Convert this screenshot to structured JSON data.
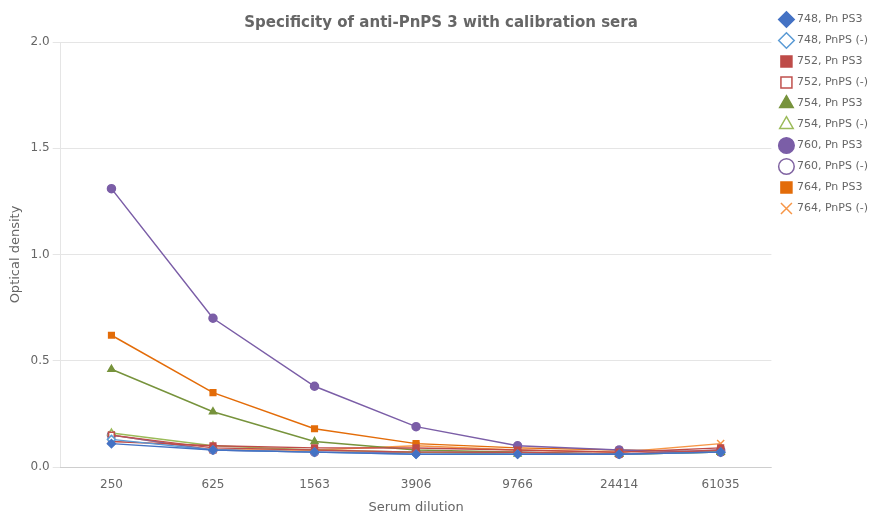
{
  "chart_data": {
    "type": "line",
    "title": "Specificity of anti-PnPS 3 with calibration sera",
    "xlabel": "Serum dilution",
    "ylabel": "Optical density",
    "categories": [
      "250",
      "625",
      "1563",
      "3906",
      "9766",
      "24414",
      "61035"
    ],
    "ylim": [
      0.0,
      2.0
    ],
    "yticks": [
      {
        "value": 0,
        "label": "0.0"
      },
      0.5,
      {
        "value": 1,
        "label": "1.0"
      },
      1.5,
      {
        "value": 2,
        "label": "2.0"
      }
    ],
    "grid": "y",
    "legend": "upper right",
    "series": [
      {
        "name": "748, Pn PS3",
        "color": "#4472C4",
        "marker": "diamond",
        "values": [
          0.11,
          0.08,
          0.07,
          0.06,
          0.06,
          0.06,
          0.07
        ]
      },
      {
        "name": "748, PnPS (-)",
        "color": "#5B9BD5",
        "marker": "open_diamond",
        "values": [
          0.13,
          0.08,
          0.07,
          0.06,
          0.06,
          0.06,
          0.07
        ]
      },
      {
        "name": "752, Pn PS3",
        "color": "#BE4B48",
        "marker": "square",
        "values": [
          0.12,
          0.1,
          0.09,
          0.09,
          0.08,
          0.07,
          0.09
        ]
      },
      {
        "name": "752, PnPS (-)",
        "color": "#C0504D",
        "marker": "open_square",
        "values": [
          0.15,
          0.09,
          0.08,
          0.07,
          0.07,
          0.06,
          0.08
        ]
      },
      {
        "name": "754, Pn PS3",
        "color": "#77933C",
        "marker": "triangle",
        "values": [
          0.46,
          0.26,
          0.12,
          0.08,
          0.07,
          0.06,
          0.07
        ]
      },
      {
        "name": "754, PnPS (-)",
        "color": "#9BBB59",
        "marker": "open_triangle",
        "values": [
          0.16,
          0.1,
          0.08,
          0.07,
          0.06,
          0.06,
          0.07
        ]
      },
      {
        "name": "760, Pn PS3",
        "color": "#7B5EA7",
        "marker": "circle",
        "values": [
          1.31,
          0.7,
          0.38,
          0.19,
          0.1,
          0.08,
          0.07
        ]
      },
      {
        "name": "760, PnPS (-)",
        "color": "#8064A2",
        "marker": "open_circle",
        "values": [
          0.15,
          0.08,
          0.07,
          0.07,
          0.07,
          0.06,
          0.08
        ]
      },
      {
        "name": "764, Pn PS3",
        "color": "#E36C09",
        "marker": "square",
        "values": [
          0.62,
          0.35,
          0.18,
          0.11,
          0.09,
          0.08,
          0.07
        ]
      },
      {
        "name": "764, PnPS (-)",
        "color": "#F79646",
        "marker": "x",
        "values": [
          0.15,
          0.08,
          0.08,
          0.1,
          0.08,
          0.07,
          0.11
        ]
      }
    ]
  }
}
